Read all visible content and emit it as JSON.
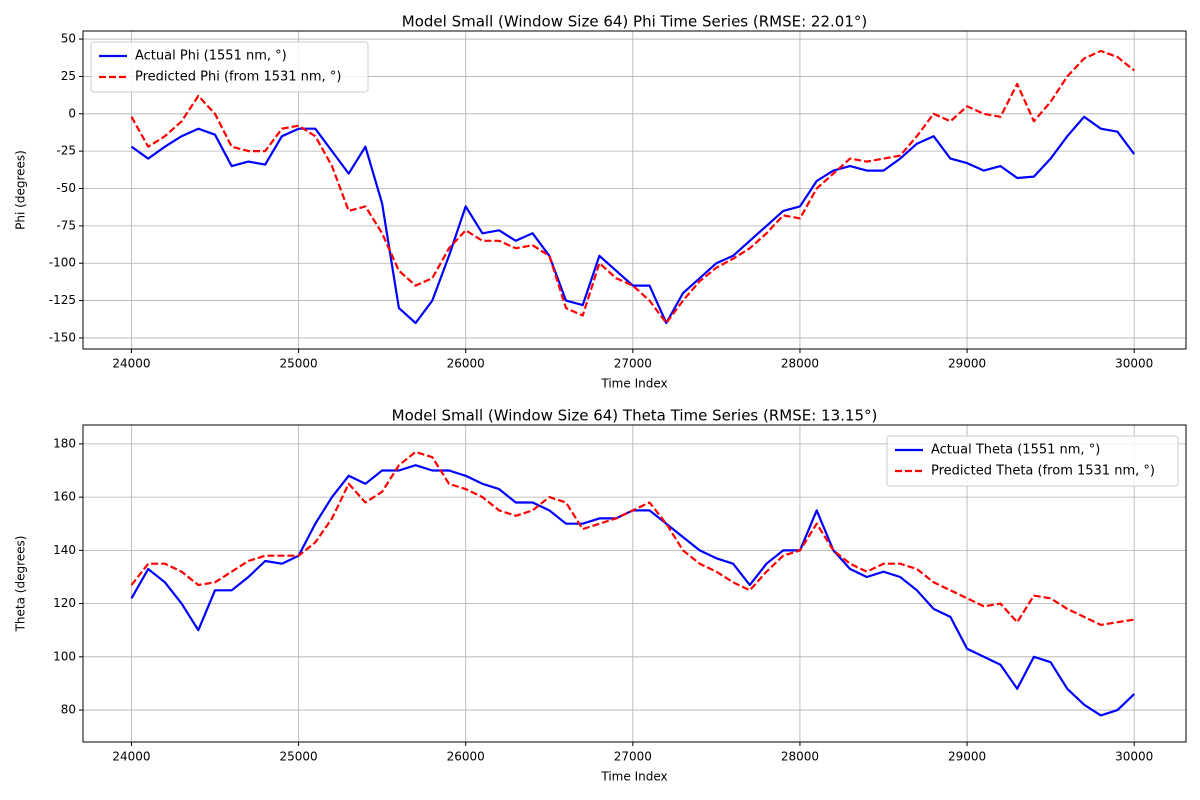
{
  "chart_data": [
    {
      "type": "line",
      "title": "Model Small (Window Size 64) Phi Time Series (RMSE: 22.01°)",
      "x_label": "Time Index",
      "y_label": "Phi (degrees)",
      "x": [
        24000,
        24100,
        24200,
        24300,
        24400,
        24500,
        24600,
        24700,
        24800,
        24900,
        25000,
        25100,
        25200,
        25300,
        25400,
        25500,
        25600,
        25700,
        25800,
        25900,
        26000,
        26100,
        26200,
        26300,
        26400,
        26500,
        26600,
        26700,
        26800,
        26900,
        27000,
        27100,
        27200,
        27300,
        27400,
        27500,
        27600,
        27700,
        27800,
        27900,
        28000,
        28100,
        28200,
        28300,
        28400,
        28500,
        28600,
        28700,
        28800,
        28900,
        29000,
        29100,
        29200,
        29300,
        29400,
        29500,
        29600,
        29700,
        29800,
        29900,
        30000
      ],
      "series": [
        {
          "name": "Actual Phi (1551 nm, °)",
          "color": "#0000ff",
          "linestyle": "solid",
          "values": [
            -22,
            -30,
            -22,
            -15,
            -10,
            -14,
            -35,
            -32,
            -34,
            -15,
            -10,
            -10,
            -25,
            -40,
            -22,
            -60,
            -130,
            -140,
            -125,
            -95,
            -62,
            -80,
            -78,
            -85,
            -80,
            -95,
            -125,
            -128,
            -95,
            -105,
            -115,
            -115,
            -140,
            -120,
            -110,
            -100,
            -95,
            -85,
            -75,
            -65,
            -62,
            -45,
            -38,
            -35,
            -38,
            -38,
            -30,
            -20,
            -15,
            -30,
            -33,
            -38,
            -35,
            -43,
            -42,
            -30,
            -15,
            -2,
            -10,
            -12,
            -27
          ]
        },
        {
          "name": "Predicted Phi (from 1531 nm, °)",
          "color": "#ff0000",
          "linestyle": "dashed",
          "values": [
            -2,
            -22,
            -15,
            -5,
            12,
            0,
            -22,
            -25,
            -25,
            -10,
            -8,
            -15,
            -35,
            -65,
            -62,
            -80,
            -105,
            -115,
            -110,
            -90,
            -78,
            -85,
            -85,
            -90,
            -88,
            -95,
            -130,
            -135,
            -100,
            -110,
            -115,
            -125,
            -140,
            -125,
            -112,
            -103,
            -97,
            -90,
            -80,
            -68,
            -70,
            -50,
            -40,
            -30,
            -32,
            -30,
            -28,
            -15,
            0,
            -5,
            5,
            0,
            -2,
            20,
            -5,
            8,
            25,
            37,
            42,
            38,
            29
          ]
        }
      ],
      "xlim": [
        23710,
        30310
      ],
      "xticks": [
        24000,
        25000,
        26000,
        27000,
        28000,
        29000,
        30000
      ],
      "ylim": [
        -157.4,
        55.4
      ],
      "yticks": [
        -150,
        -125,
        -100,
        -75,
        -50,
        -25,
        0,
        25,
        50
      ],
      "grid": true,
      "legend": "upper left"
    },
    {
      "type": "line",
      "title": "Model Small (Window Size 64) Theta Time Series (RMSE: 13.15°)",
      "x_label": "Time Index",
      "y_label": "Theta (degrees)",
      "x": [
        24000,
        24100,
        24200,
        24300,
        24400,
        24500,
        24600,
        24700,
        24800,
        24900,
        25000,
        25100,
        25200,
        25300,
        25400,
        25500,
        25600,
        25700,
        25800,
        25900,
        26000,
        26100,
        26200,
        26300,
        26400,
        26500,
        26600,
        26700,
        26800,
        26900,
        27000,
        27100,
        27200,
        27300,
        27400,
        27500,
        27600,
        27700,
        27800,
        27900,
        28000,
        28100,
        28200,
        28300,
        28400,
        28500,
        28600,
        28700,
        28800,
        28900,
        29000,
        29100,
        29200,
        29300,
        29400,
        29500,
        29600,
        29700,
        29800,
        29900,
        30000
      ],
      "series": [
        {
          "name": "Actual Theta (1551 nm, °)",
          "color": "#0000ff",
          "linestyle": "solid",
          "values": [
            122,
            133,
            128,
            120,
            110,
            125,
            125,
            130,
            136,
            135,
            138,
            150,
            160,
            168,
            165,
            170,
            170,
            172,
            170,
            170,
            168,
            165,
            163,
            158,
            158,
            155,
            150,
            150,
            152,
            152,
            155,
            155,
            150,
            145,
            140,
            137,
            135,
            127,
            135,
            140,
            140,
            155,
            140,
            133,
            130,
            132,
            130,
            125,
            118,
            115,
            103,
            100,
            97,
            88,
            100,
            98,
            88,
            82,
            78,
            80,
            86
          ]
        },
        {
          "name": "Predicted Theta (from 1531 nm, °)",
          "color": "#ff0000",
          "linestyle": "dashed",
          "values": [
            127,
            135,
            135,
            132,
            127,
            128,
            132,
            136,
            138,
            138,
            138,
            143,
            152,
            165,
            158,
            162,
            172,
            177,
            175,
            165,
            163,
            160,
            155,
            153,
            155,
            160,
            158,
            148,
            150,
            152,
            155,
            158,
            150,
            140,
            135,
            132,
            128,
            125,
            132,
            138,
            140,
            150,
            140,
            135,
            132,
            135,
            135,
            133,
            128,
            125,
            122,
            119,
            120,
            113,
            123,
            122,
            118,
            115,
            112,
            113,
            114
          ]
        }
      ],
      "xlim": [
        23710,
        30310
      ],
      "xticks": [
        24000,
        25000,
        26000,
        27000,
        28000,
        29000,
        30000
      ],
      "ylim": [
        68,
        187.1
      ],
      "yticks": [
        80,
        100,
        120,
        140,
        160,
        180
      ],
      "grid": true,
      "legend": "upper right"
    }
  ]
}
